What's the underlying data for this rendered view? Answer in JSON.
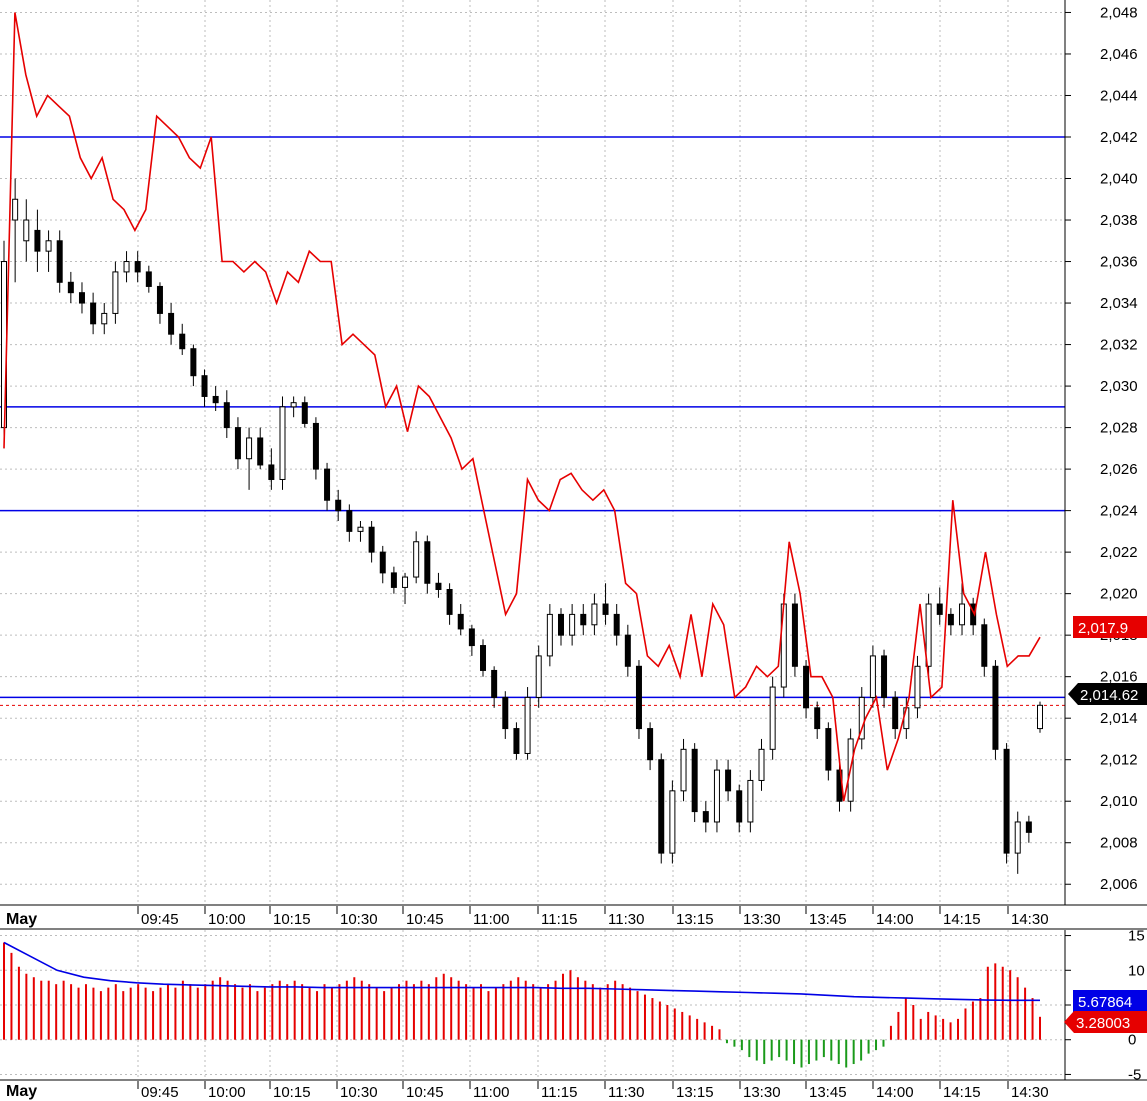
{
  "colors": {
    "background": "#ffffff",
    "grid": "#bdbdbd",
    "level_line": "#0000e6",
    "red_line": "#e60000",
    "candle_up": "#ffffff",
    "candle_down": "#000000",
    "hist_pos": "#e60000",
    "hist_neg": "#1a9a1a",
    "avg_line": "#0000e6",
    "tag_blue": "#0000e6",
    "tag_red": "#e60000",
    "tag_black": "#000000"
  },
  "x_axis": {
    "month_label": "May",
    "time_labels": [
      "09:45",
      "10:00",
      "10:15",
      "10:30",
      "10:45",
      "11:00",
      "11:15",
      "11:30",
      "13:15",
      "13:30",
      "13:45",
      "14:00",
      "14:15",
      "14:30"
    ]
  },
  "price_axis": {
    "ticks": [
      "2,006",
      "2,008",
      "2,010",
      "2,012",
      "2,014",
      "2,016",
      "2,018",
      "2,020",
      "2,022",
      "2,024",
      "2,026",
      "2,028",
      "2,030",
      "2,032",
      "2,034",
      "2,036",
      "2,038",
      "2,040",
      "2,042",
      "2,044",
      "2,046",
      "2,048"
    ],
    "tag_red": "2,017.9",
    "tag_black": "2,014.62"
  },
  "indicator_axis": {
    "ticks": [
      "15",
      "10",
      "5",
      "0",
      "-5"
    ],
    "tag_blue": "5.67864",
    "tag_red": "3.28003"
  },
  "chart_data": {
    "type": "candlestick",
    "panels": [
      "price",
      "indicator-histogram"
    ],
    "price_ylim": [
      2005,
      2048.6
    ],
    "horizontal_levels": [
      2042.0,
      2029.0,
      2024.0,
      2015.0
    ],
    "last_price": 2014.62,
    "red_line_last": 2017.9,
    "red_line": [
      2027,
      2048,
      2045,
      2043,
      2044,
      2043.5,
      2043,
      2041,
      2040,
      2041,
      2039,
      2038.5,
      2037.5,
      2038.5,
      2043,
      2042.5,
      2042,
      2041,
      2040.5,
      2042,
      2036,
      2036,
      2035.5,
      2036,
      2035.5,
      2034,
      2035.5,
      2035,
      2036.5,
      2036,
      2036,
      2032,
      2032.5,
      2032,
      2031.5,
      2029,
      2030,
      2027.8,
      2030,
      2029.5,
      2028.5,
      2027.5,
      2026,
      2026.5,
      2024,
      2021.5,
      2019,
      2020,
      2025.5,
      2024.5,
      2024,
      2025.5,
      2025.8,
      2025,
      2024.5,
      2025,
      2024,
      2020.5,
      2020,
      2017,
      2016.5,
      2017.5,
      2016,
      2019,
      2016,
      2019.5,
      2018.5,
      2015,
      2015.5,
      2016.5,
      2016,
      2016.5,
      2022.5,
      2020,
      2016,
      2016,
      2015,
      2010,
      2012.5,
      2014,
      2015,
      2011.5,
      2013,
      2015,
      2019.5,
      2015,
      2015.5,
      2024.5,
      2020,
      2019,
      2022,
      2019,
      2016.5,
      2017,
      2017,
      2017.9
    ],
    "candles": [
      {
        "o": 2028,
        "h": 2037,
        "l": 2027,
        "c": 2036
      },
      {
        "o": 2038,
        "h": 2040,
        "l": 2035,
        "c": 2039
      },
      {
        "o": 2037,
        "h": 2039,
        "l": 2036,
        "c": 2038
      },
      {
        "o": 2037.5,
        "h": 2038.5,
        "l": 2035.5,
        "c": 2036.5
      },
      {
        "o": 2036.5,
        "h": 2037.5,
        "l": 2035.5,
        "c": 2037
      },
      {
        "o": 2037,
        "h": 2037.5,
        "l": 2034.5,
        "c": 2035
      },
      {
        "o": 2035,
        "h": 2035.5,
        "l": 2034,
        "c": 2034.5
      },
      {
        "o": 2034.5,
        "h": 2035,
        "l": 2033.5,
        "c": 2034
      },
      {
        "o": 2034,
        "h": 2034.5,
        "l": 2032.5,
        "c": 2033
      },
      {
        "o": 2033,
        "h": 2034,
        "l": 2032.5,
        "c": 2033.5
      },
      {
        "o": 2033.5,
        "h": 2036,
        "l": 2033,
        "c": 2035.5
      },
      {
        "o": 2035.5,
        "h": 2036.5,
        "l": 2035,
        "c": 2036
      },
      {
        "o": 2036,
        "h": 2036.5,
        "l": 2035,
        "c": 2035.5
      },
      {
        "o": 2035.5,
        "h": 2035.8,
        "l": 2034.5,
        "c": 2034.8
      },
      {
        "o": 2034.8,
        "h": 2035,
        "l": 2033,
        "c": 2033.5
      },
      {
        "o": 2033.5,
        "h": 2034,
        "l": 2032,
        "c": 2032.5
      },
      {
        "o": 2032.5,
        "h": 2033,
        "l": 2031.5,
        "c": 2031.8
      },
      {
        "o": 2031.8,
        "h": 2032,
        "l": 2030,
        "c": 2030.5
      },
      {
        "o": 2030.5,
        "h": 2030.8,
        "l": 2029,
        "c": 2029.5
      },
      {
        "o": 2029.5,
        "h": 2030,
        "l": 2028.8,
        "c": 2029.2
      },
      {
        "o": 2029.2,
        "h": 2029.8,
        "l": 2027.5,
        "c": 2028
      },
      {
        "o": 2028,
        "h": 2028.5,
        "l": 2026,
        "c": 2026.5
      },
      {
        "o": 2026.5,
        "h": 2028,
        "l": 2025,
        "c": 2027.5
      },
      {
        "o": 2027.5,
        "h": 2028,
        "l": 2026,
        "c": 2026.2
      },
      {
        "o": 2026.2,
        "h": 2027,
        "l": 2025,
        "c": 2025.5
      },
      {
        "o": 2025.5,
        "h": 2029.5,
        "l": 2025,
        "c": 2029
      },
      {
        "o": 2029,
        "h": 2029.5,
        "l": 2028.5,
        "c": 2029.2
      },
      {
        "o": 2029.2,
        "h": 2029.5,
        "l": 2028,
        "c": 2028.2
      },
      {
        "o": 2028.2,
        "h": 2028.5,
        "l": 2025.5,
        "c": 2026
      },
      {
        "o": 2026,
        "h": 2026.3,
        "l": 2024,
        "c": 2024.5
      },
      {
        "o": 2024.5,
        "h": 2025,
        "l": 2023.5,
        "c": 2024
      },
      {
        "o": 2024,
        "h": 2024.3,
        "l": 2022.5,
        "c": 2023
      },
      {
        "o": 2023,
        "h": 2023.5,
        "l": 2022.5,
        "c": 2023.2
      },
      {
        "o": 2023.2,
        "h": 2023.5,
        "l": 2021.5,
        "c": 2022
      },
      {
        "o": 2022,
        "h": 2022.3,
        "l": 2020.5,
        "c": 2021
      },
      {
        "o": 2021,
        "h": 2021.3,
        "l": 2020,
        "c": 2020.3
      },
      {
        "o": 2020.3,
        "h": 2021,
        "l": 2019.5,
        "c": 2020.8
      },
      {
        "o": 2020.8,
        "h": 2023,
        "l": 2020.5,
        "c": 2022.5
      },
      {
        "o": 2022.5,
        "h": 2022.8,
        "l": 2020,
        "c": 2020.5
      },
      {
        "o": 2020.5,
        "h": 2021,
        "l": 2019.8,
        "c": 2020.2
      },
      {
        "o": 2020.2,
        "h": 2020.5,
        "l": 2018.5,
        "c": 2019
      },
      {
        "o": 2019,
        "h": 2019.5,
        "l": 2018,
        "c": 2018.3
      },
      {
        "o": 2018.3,
        "h": 2018.5,
        "l": 2017,
        "c": 2017.5
      },
      {
        "o": 2017.5,
        "h": 2017.8,
        "l": 2016,
        "c": 2016.3
      },
      {
        "o": 2016.3,
        "h": 2016.5,
        "l": 2014.5,
        "c": 2015
      },
      {
        "o": 2015,
        "h": 2015.3,
        "l": 2013,
        "c": 2013.5
      },
      {
        "o": 2013.5,
        "h": 2013.8,
        "l": 2012,
        "c": 2012.3
      },
      {
        "o": 2012.3,
        "h": 2015.5,
        "l": 2012,
        "c": 2015
      },
      {
        "o": 2015,
        "h": 2017.5,
        "l": 2014.5,
        "c": 2017
      },
      {
        "o": 2017,
        "h": 2019.5,
        "l": 2016.5,
        "c": 2019
      },
      {
        "o": 2019,
        "h": 2019.3,
        "l": 2017.5,
        "c": 2018
      },
      {
        "o": 2018,
        "h": 2019.5,
        "l": 2017.5,
        "c": 2019
      },
      {
        "o": 2019,
        "h": 2019.5,
        "l": 2018,
        "c": 2018.5
      },
      {
        "o": 2018.5,
        "h": 2020,
        "l": 2018,
        "c": 2019.5
      },
      {
        "o": 2019.5,
        "h": 2020.5,
        "l": 2018.5,
        "c": 2019
      },
      {
        "o": 2019,
        "h": 2019.5,
        "l": 2017.5,
        "c": 2018
      },
      {
        "o": 2018,
        "h": 2018.5,
        "l": 2016,
        "c": 2016.5
      },
      {
        "o": 2016.5,
        "h": 2016.8,
        "l": 2013,
        "c": 2013.5
      },
      {
        "o": 2013.5,
        "h": 2013.8,
        "l": 2011.5,
        "c": 2012
      },
      {
        "o": 2012,
        "h": 2012.3,
        "l": 2007,
        "c": 2007.5
      },
      {
        "o": 2007.5,
        "h": 2011,
        "l": 2007,
        "c": 2010.5
      },
      {
        "o": 2010.5,
        "h": 2013,
        "l": 2010,
        "c": 2012.5
      },
      {
        "o": 2012.5,
        "h": 2012.8,
        "l": 2009,
        "c": 2009.5
      },
      {
        "o": 2009.5,
        "h": 2010,
        "l": 2008.5,
        "c": 2009
      },
      {
        "o": 2009,
        "h": 2012,
        "l": 2008.5,
        "c": 2011.5
      },
      {
        "o": 2011.5,
        "h": 2012,
        "l": 2010,
        "c": 2010.5
      },
      {
        "o": 2010.5,
        "h": 2010.8,
        "l": 2008.5,
        "c": 2009
      },
      {
        "o": 2009,
        "h": 2011.5,
        "l": 2008.5,
        "c": 2011
      },
      {
        "o": 2011,
        "h": 2013,
        "l": 2010.5,
        "c": 2012.5
      },
      {
        "o": 2012.5,
        "h": 2016,
        "l": 2012,
        "c": 2015.5
      },
      {
        "o": 2015.5,
        "h": 2020,
        "l": 2015,
        "c": 2019.5
      },
      {
        "o": 2019.5,
        "h": 2020,
        "l": 2016,
        "c": 2016.5
      },
      {
        "o": 2016.5,
        "h": 2016.8,
        "l": 2014,
        "c": 2014.5
      },
      {
        "o": 2014.5,
        "h": 2014.8,
        "l": 2013,
        "c": 2013.5
      },
      {
        "o": 2013.5,
        "h": 2013.8,
        "l": 2011,
        "c": 2011.5
      },
      {
        "o": 2011.5,
        "h": 2011.8,
        "l": 2009.5,
        "c": 2010
      },
      {
        "o": 2010,
        "h": 2013.5,
        "l": 2009.5,
        "c": 2013
      },
      {
        "o": 2013,
        "h": 2015.5,
        "l": 2012.5,
        "c": 2015
      },
      {
        "o": 2015,
        "h": 2017.5,
        "l": 2014.5,
        "c": 2017
      },
      {
        "o": 2017,
        "h": 2017.3,
        "l": 2014.5,
        "c": 2015
      },
      {
        "o": 2015,
        "h": 2015.3,
        "l": 2013,
        "c": 2013.5
      },
      {
        "o": 2013.5,
        "h": 2015,
        "l": 2013,
        "c": 2014.5
      },
      {
        "o": 2014.5,
        "h": 2017,
        "l": 2014,
        "c": 2016.5
      },
      {
        "o": 2016.5,
        "h": 2020,
        "l": 2016,
        "c": 2019.5
      },
      {
        "o": 2019.5,
        "h": 2020.3,
        "l": 2018.5,
        "c": 2019
      },
      {
        "o": 2019,
        "h": 2019.3,
        "l": 2018,
        "c": 2018.5
      },
      {
        "o": 2018.5,
        "h": 2020.5,
        "l": 2018,
        "c": 2019.5
      },
      {
        "o": 2019.5,
        "h": 2019.8,
        "l": 2018,
        "c": 2018.5
      },
      {
        "o": 2018.5,
        "h": 2018.8,
        "l": 2016,
        "c": 2016.5
      },
      {
        "o": 2016.5,
        "h": 2016.8,
        "l": 2012,
        "c": 2012.5
      },
      {
        "o": 2012.5,
        "h": 2012.8,
        "l": 2007,
        "c": 2007.5
      },
      {
        "o": 2007.5,
        "h": 2009.5,
        "l": 2006.5,
        "c": 2009
      },
      {
        "o": 2009,
        "h": 2009.3,
        "l": 2008,
        "c": 2008.5
      },
      {
        "o": 2013.5,
        "h": 2014.8,
        "l": 2013.3,
        "c": 2014.62
      }
    ],
    "histogram": [
      14,
      12.5,
      10.5,
      9.5,
      9,
      8.5,
      8.5,
      8,
      8.5,
      8,
      7.5,
      8,
      7.5,
      7,
      7.5,
      8,
      7,
      7.5,
      8,
      7.5,
      7,
      7.5,
      8,
      7.5,
      8.5,
      8,
      7.5,
      8,
      8.5,
      9,
      8.5,
      8,
      7.5,
      8,
      7,
      7.5,
      8,
      8.5,
      8,
      8.5,
      8,
      7.5,
      7,
      8,
      7.5,
      8,
      8.5,
      9,
      8.5,
      8,
      7.5,
      7,
      7.5,
      8,
      8.5,
      8,
      8.5,
      8,
      9,
      9.5,
      9,
      8.5,
      8,
      7.5,
      8,
      7,
      7.5,
      8,
      8.5,
      9,
      8.5,
      8,
      7.5,
      8,
      8.5,
      9.5,
      10,
      9,
      8.5,
      8,
      7.5,
      8,
      8.5,
      8,
      7.5,
      7,
      6.5,
      6,
      5.5,
      5,
      4.5,
      4,
      3.5,
      3,
      2.5,
      2,
      1.5,
      -0.5,
      -1,
      -1.5,
      -2.5,
      -3,
      -3.5,
      -3,
      -2.5,
      -3,
      -3.5,
      -4,
      -3.5,
      -3,
      -2.5,
      -3,
      -3.5,
      -4,
      -3.5,
      -3,
      -2,
      -1.5,
      -1,
      2,
      4,
      6,
      5,
      3,
      4,
      3.5,
      3,
      2.5,
      3,
      4.5,
      5.5,
      6,
      10.5,
      11,
      10.5,
      10,
      9,
      7.5,
      6,
      3.3
    ],
    "indicator_ylim": [
      -5.8,
      15.8
    ],
    "indicator_avg_line": [
      14,
      12,
      10,
      9,
      8.5,
      8.2,
      8,
      7.9,
      7.8,
      7.7,
      7.6,
      7.6,
      7.5,
      7.5,
      7.5,
      7.5,
      7.5,
      7.5,
      7.5,
      7.5,
      7.5,
      7.4,
      7.4,
      7.3,
      7.2,
      7.1,
      7,
      6.9,
      6.8,
      6.7,
      6.6,
      6.4,
      6.2,
      6.1,
      6,
      5.9,
      5.8,
      5.7,
      5.68,
      5.67864
    ]
  }
}
